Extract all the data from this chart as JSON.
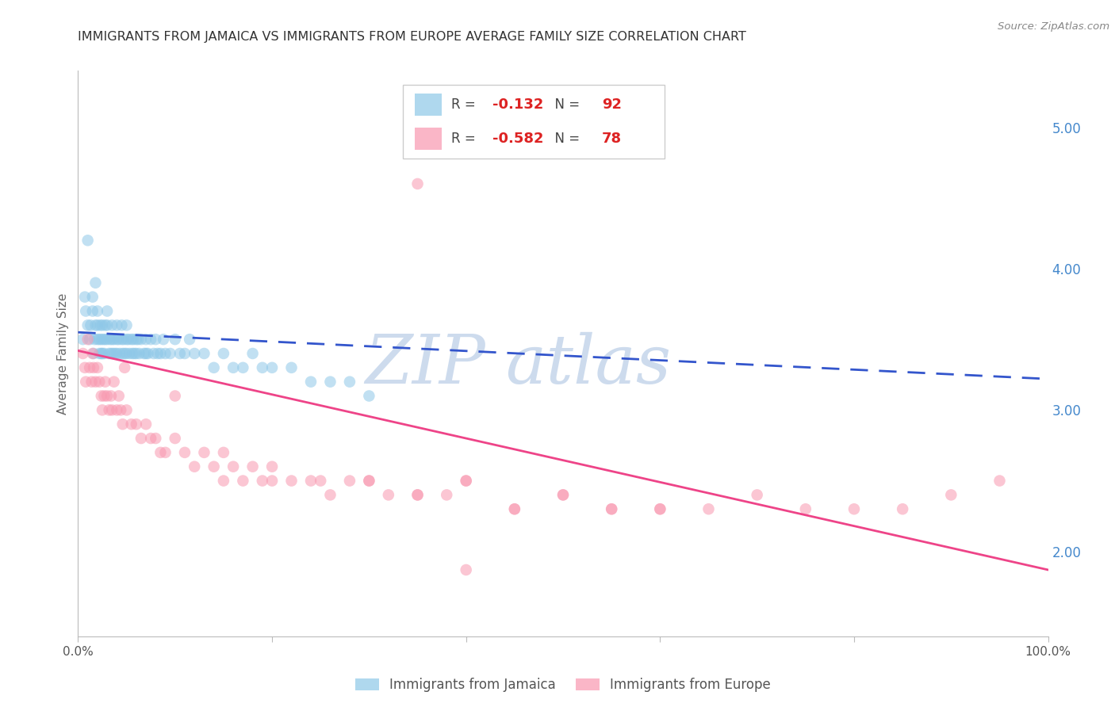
{
  "title": "IMMIGRANTS FROM JAMAICA VS IMMIGRANTS FROM EUROPE AVERAGE FAMILY SIZE CORRELATION CHART",
  "source": "Source: ZipAtlas.com",
  "ylabel": "Average Family Size",
  "right_yticks": [
    2.0,
    3.0,
    4.0,
    5.0
  ],
  "right_ytick_labels": [
    "2.00",
    "3.00",
    "4.00",
    "5.00"
  ],
  "background_color": "#ffffff",
  "grid_color": "#cccccc",
  "jamaica_color": "#8ec8e8",
  "europe_color": "#f898b0",
  "jamaica_R": -0.132,
  "jamaica_N": 92,
  "europe_R": -0.582,
  "europe_N": 78,
  "jamaica_line_color": "#3355cc",
  "europe_line_color": "#ee4488",
  "xlim": [
    0.0,
    1.0
  ],
  "ylim": [
    1.4,
    5.4
  ],
  "jamaica_line_y0": 3.55,
  "jamaica_line_y1": 3.22,
  "europe_line_y0": 3.42,
  "europe_line_y1": 1.87,
  "jamaica_scatter_x": [
    0.005,
    0.007,
    0.008,
    0.01,
    0.01,
    0.012,
    0.013,
    0.015,
    0.015,
    0.016,
    0.017,
    0.018,
    0.018,
    0.02,
    0.02,
    0.02,
    0.022,
    0.022,
    0.023,
    0.024,
    0.024,
    0.025,
    0.025,
    0.026,
    0.027,
    0.028,
    0.028,
    0.03,
    0.03,
    0.03,
    0.032,
    0.033,
    0.034,
    0.035,
    0.035,
    0.036,
    0.037,
    0.038,
    0.04,
    0.04,
    0.04,
    0.042,
    0.043,
    0.045,
    0.045,
    0.046,
    0.047,
    0.048,
    0.05,
    0.05,
    0.05,
    0.052,
    0.053,
    0.055,
    0.056,
    0.057,
    0.058,
    0.06,
    0.06,
    0.062,
    0.063,
    0.065,
    0.068,
    0.07,
    0.07,
    0.072,
    0.075,
    0.078,
    0.08,
    0.082,
    0.085,
    0.088,
    0.09,
    0.095,
    0.1,
    0.105,
    0.11,
    0.115,
    0.12,
    0.13,
    0.14,
    0.15,
    0.16,
    0.17,
    0.18,
    0.19,
    0.2,
    0.22,
    0.24,
    0.26,
    0.28,
    0.3
  ],
  "jamaica_scatter_y": [
    3.5,
    3.8,
    3.7,
    3.6,
    4.2,
    3.5,
    3.6,
    3.7,
    3.8,
    3.4,
    3.5,
    3.6,
    3.9,
    3.5,
    3.6,
    3.7,
    3.4,
    3.5,
    3.6,
    3.4,
    3.5,
    3.4,
    3.6,
    3.5,
    3.4,
    3.5,
    3.6,
    3.5,
    3.6,
    3.7,
    3.4,
    3.5,
    3.4,
    3.5,
    3.6,
    3.4,
    3.5,
    3.4,
    3.5,
    3.6,
    3.4,
    3.5,
    3.4,
    3.5,
    3.6,
    3.4,
    3.5,
    3.4,
    3.4,
    3.5,
    3.6,
    3.5,
    3.4,
    3.5,
    3.4,
    3.5,
    3.4,
    3.5,
    3.4,
    3.5,
    3.4,
    3.5,
    3.4,
    3.4,
    3.5,
    3.4,
    3.5,
    3.4,
    3.5,
    3.4,
    3.4,
    3.5,
    3.4,
    3.4,
    3.5,
    3.4,
    3.4,
    3.5,
    3.4,
    3.4,
    3.3,
    3.4,
    3.3,
    3.3,
    3.4,
    3.3,
    3.3,
    3.3,
    3.2,
    3.2,
    3.2,
    3.1
  ],
  "europe_scatter_x": [
    0.005,
    0.007,
    0.008,
    0.01,
    0.012,
    0.014,
    0.015,
    0.016,
    0.018,
    0.02,
    0.022,
    0.024,
    0.025,
    0.027,
    0.028,
    0.03,
    0.032,
    0.034,
    0.035,
    0.037,
    0.04,
    0.042,
    0.044,
    0.046,
    0.048,
    0.05,
    0.055,
    0.06,
    0.065,
    0.07,
    0.075,
    0.08,
    0.085,
    0.09,
    0.1,
    0.11,
    0.12,
    0.13,
    0.14,
    0.15,
    0.16,
    0.17,
    0.18,
    0.19,
    0.2,
    0.22,
    0.24,
    0.26,
    0.28,
    0.3,
    0.32,
    0.35,
    0.38,
    0.4,
    0.45,
    0.5,
    0.55,
    0.6,
    0.65,
    0.7,
    0.75,
    0.8,
    0.85,
    0.9,
    0.95,
    0.1,
    0.15,
    0.2,
    0.25,
    0.3,
    0.35,
    0.4,
    0.45,
    0.5,
    0.55,
    0.6,
    0.35,
    0.4
  ],
  "europe_scatter_y": [
    3.4,
    3.3,
    3.2,
    3.5,
    3.3,
    3.2,
    3.4,
    3.3,
    3.2,
    3.3,
    3.2,
    3.1,
    3.0,
    3.1,
    3.2,
    3.1,
    3.0,
    3.1,
    3.0,
    3.2,
    3.0,
    3.1,
    3.0,
    2.9,
    3.3,
    3.0,
    2.9,
    2.9,
    2.8,
    2.9,
    2.8,
    2.8,
    2.7,
    2.7,
    2.8,
    2.7,
    2.6,
    2.7,
    2.6,
    2.5,
    2.6,
    2.5,
    2.6,
    2.5,
    2.5,
    2.5,
    2.5,
    2.4,
    2.5,
    2.5,
    2.4,
    2.4,
    2.4,
    2.5,
    2.3,
    2.4,
    2.3,
    2.3,
    2.3,
    2.4,
    2.3,
    2.3,
    2.3,
    2.4,
    2.5,
    3.1,
    2.7,
    2.6,
    2.5,
    2.5,
    2.4,
    2.5,
    2.3,
    2.4,
    2.3,
    2.3,
    4.6,
    1.87
  ],
  "watermark_text": "ZIP",
  "watermark_text2": "atlas",
  "watermark_color": "#c8d8ec",
  "watermark_alpha": 0.9
}
